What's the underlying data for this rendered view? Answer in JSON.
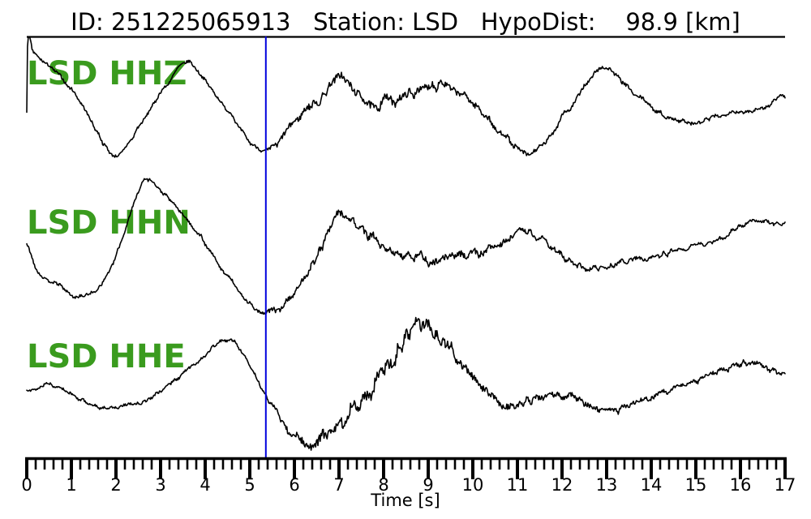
{
  "title": {
    "text": "ID: 251225065913   Station: LSD   HypoDist:    98.9 [km]"
  },
  "chart_data": {
    "type": "line",
    "title": "ID: 251225065913   Station: LSD   HypoDist: 98.9 [km]",
    "event_id": "251225065913",
    "station": "LSD",
    "hypodist_km": 98.9,
    "xlabel": "Time [s]",
    "x_range": [
      0,
      17
    ],
    "x_ticks": [
      "0",
      "1",
      "2",
      "3",
      "4",
      "5",
      "6",
      "7",
      "8",
      "9",
      "10",
      "11",
      "12",
      "13",
      "14",
      "15",
      "16",
      "17"
    ],
    "x_minor_tick_step": 0.2,
    "grid": false,
    "legend": "none",
    "pick_time_s": 5.36,
    "colors": {
      "trace": "#000000",
      "pick_line": "#0000dd",
      "label": "#3a9b1e",
      "axis": "#000000"
    },
    "channels": [
      {
        "label": "LSD HHZ",
        "seed": 7,
        "keypoints": [
          [
            0,
            -0.05
          ],
          [
            0.02,
            1.4
          ],
          [
            0.15,
            1.1
          ],
          [
            0.6,
            0.78
          ],
          [
            1.2,
            0.12
          ],
          [
            1.95,
            -0.97
          ],
          [
            2.6,
            -0.3
          ],
          [
            3.2,
            0.55
          ],
          [
            3.58,
            0.95
          ],
          [
            4.1,
            0.4
          ],
          [
            4.5,
            -0.05
          ],
          [
            5.0,
            -0.7
          ],
          [
            5.35,
            -0.93
          ],
          [
            5.8,
            -0.55
          ],
          [
            6.1,
            -0.27
          ],
          [
            6.6,
            0.2
          ],
          [
            7.0,
            0.57
          ],
          [
            7.6,
            0.12
          ],
          [
            8.5,
            0.2
          ],
          [
            9.4,
            0.45
          ],
          [
            10.0,
            0.03
          ],
          [
            10.7,
            -0.6
          ],
          [
            11.3,
            -0.93
          ],
          [
            12.1,
            -0.1
          ],
          [
            12.9,
            0.78
          ],
          [
            13.6,
            0.3
          ],
          [
            14.2,
            -0.13
          ],
          [
            14.9,
            -0.33
          ],
          [
            15.8,
            -0.13
          ],
          [
            16.4,
            -0.05
          ],
          [
            17,
            0.23
          ]
        ],
        "noise_envelope": [
          [
            0,
            0.05
          ],
          [
            5.2,
            0.05
          ],
          [
            5.6,
            0.09
          ],
          [
            6.5,
            0.12
          ],
          [
            7.5,
            0.14
          ],
          [
            9.0,
            0.12
          ],
          [
            10.5,
            0.09
          ],
          [
            12,
            0.07
          ],
          [
            14,
            0.06
          ],
          [
            17,
            0.06
          ]
        ]
      },
      {
        "label": "LSD HHN",
        "seed": 13,
        "keypoints": [
          [
            0,
            -0.03
          ],
          [
            0.25,
            -0.55
          ],
          [
            0.7,
            -0.85
          ],
          [
            1.05,
            -1.08
          ],
          [
            1.6,
            -0.92
          ],
          [
            2.0,
            -0.25
          ],
          [
            2.6,
            1.25
          ],
          [
            3.1,
            1.0
          ],
          [
            3.6,
            0.5
          ],
          [
            4.0,
            0.0
          ],
          [
            4.6,
            -0.8
          ],
          [
            5.3,
            -1.42
          ],
          [
            5.9,
            -1.17
          ],
          [
            6.5,
            -0.3
          ],
          [
            7.0,
            0.63
          ],
          [
            7.6,
            0.17
          ],
          [
            8.5,
            -0.25
          ],
          [
            9.5,
            -0.33
          ],
          [
            10.3,
            -0.1
          ],
          [
            11.3,
            0.2
          ],
          [
            12.4,
            -0.5
          ],
          [
            13.5,
            -0.37
          ],
          [
            14.5,
            -0.17
          ],
          [
            15.5,
            0.08
          ],
          [
            16.3,
            0.47
          ],
          [
            17,
            0.37
          ]
        ],
        "noise_envelope": [
          [
            0,
            0.05
          ],
          [
            5.2,
            0.05
          ],
          [
            5.6,
            0.1
          ],
          [
            7.0,
            0.12
          ],
          [
            9.5,
            0.13
          ],
          [
            11,
            0.09
          ],
          [
            13,
            0.07
          ],
          [
            15,
            0.06
          ],
          [
            17,
            0.05
          ]
        ]
      },
      {
        "label": "LSD HHE",
        "seed": 21,
        "keypoints": [
          [
            0,
            -0.23
          ],
          [
            0.6,
            -0.12
          ],
          [
            1.4,
            -0.5
          ],
          [
            1.8,
            -0.57
          ],
          [
            2.6,
            -0.45
          ],
          [
            3.5,
            0.1
          ],
          [
            4.4,
            0.8
          ],
          [
            4.8,
            0.63
          ],
          [
            5.35,
            -0.33
          ],
          [
            5.9,
            -1.03
          ],
          [
            6.25,
            -1.35
          ],
          [
            6.7,
            -1.12
          ],
          [
            7.3,
            -0.62
          ],
          [
            8.0,
            0.1
          ],
          [
            8.7,
            1.13
          ],
          [
            9.3,
            0.8
          ],
          [
            10.2,
            -0.2
          ],
          [
            10.9,
            -0.53
          ],
          [
            11.8,
            -0.28
          ],
          [
            12.6,
            -0.53
          ],
          [
            13.2,
            -0.62
          ],
          [
            14.0,
            -0.37
          ],
          [
            15.0,
            -0.03
          ],
          [
            16.2,
            0.33
          ],
          [
            17,
            0.1
          ]
        ],
        "noise_envelope": [
          [
            0,
            0.05
          ],
          [
            5.3,
            0.05
          ],
          [
            5.8,
            0.1
          ],
          [
            6.5,
            0.16
          ],
          [
            7.5,
            0.24
          ],
          [
            8.6,
            0.22
          ],
          [
            9.5,
            0.16
          ],
          [
            10.5,
            0.12
          ],
          [
            12,
            0.09
          ],
          [
            14,
            0.07
          ],
          [
            16,
            0.07
          ],
          [
            17,
            0.06
          ]
        ]
      }
    ]
  }
}
